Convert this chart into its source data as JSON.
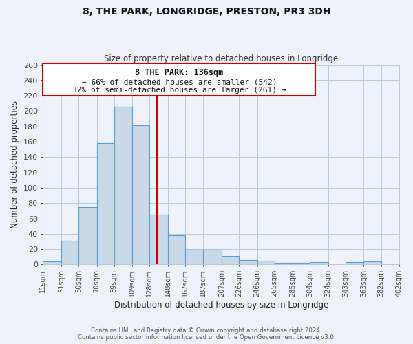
{
  "title": "8, THE PARK, LONGRIDGE, PRESTON, PR3 3DH",
  "subtitle": "Size of property relative to detached houses in Longridge",
  "xlabel": "Distribution of detached houses by size in Longridge",
  "ylabel": "Number of detached properties",
  "bin_edges": [
    11,
    31,
    50,
    70,
    89,
    109,
    128,
    148,
    167,
    187,
    207,
    226,
    246,
    265,
    285,
    304,
    324,
    343,
    363,
    382,
    402
  ],
  "bar_heights": [
    4,
    31,
    75,
    158,
    206,
    182,
    65,
    38,
    19,
    19,
    11,
    6,
    5,
    2,
    2,
    3,
    0,
    3,
    4,
    0
  ],
  "bar_color": "#c9d9e8",
  "bar_edge_color": "#5b9bd5",
  "grid_color": "#b8c8d8",
  "bg_color": "#eef2f8",
  "vline_x": 136,
  "vline_color": "#cc0000",
  "annotation_title": "8 THE PARK: 136sqm",
  "annotation_line1": "← 66% of detached houses are smaller (542)",
  "annotation_line2": "32% of semi-detached houses are larger (261) →",
  "annotation_box_edge": "#cc0000",
  "tick_labels": [
    "11sqm",
    "31sqm",
    "50sqm",
    "70sqm",
    "89sqm",
    "109sqm",
    "128sqm",
    "148sqm",
    "167sqm",
    "187sqm",
    "207sqm",
    "226sqm",
    "246sqm",
    "265sqm",
    "285sqm",
    "304sqm",
    "324sqm",
    "343sqm",
    "363sqm",
    "382sqm",
    "402sqm"
  ],
  "ylim": [
    0,
    260
  ],
  "yticks": [
    0,
    20,
    40,
    60,
    80,
    100,
    120,
    140,
    160,
    180,
    200,
    220,
    240,
    260
  ],
  "footer_line1": "Contains HM Land Registry data © Crown copyright and database right 2024.",
  "footer_line2": "Contains public sector information licensed under the Open Government Licence v3.0."
}
